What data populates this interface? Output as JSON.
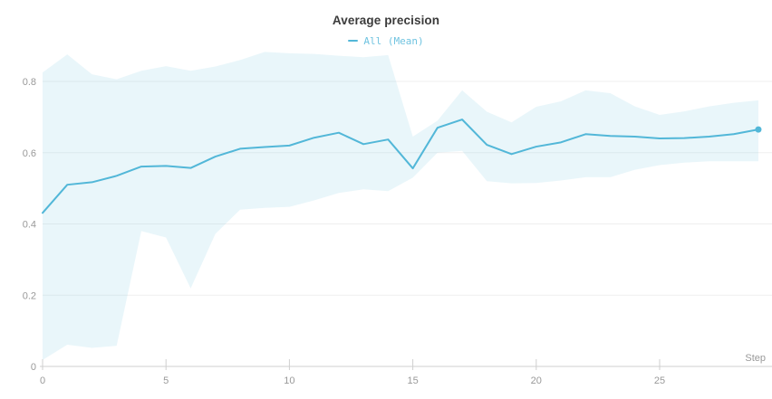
{
  "header": {
    "title": "Average precision"
  },
  "legend": {
    "items": [
      {
        "label": "All (Mean)",
        "color": "#6fc3e0",
        "swatch_color": "#52b7d8"
      }
    ]
  },
  "axes": {
    "x_axis_label": "Step",
    "x_ticks": [
      0,
      5,
      10,
      15,
      20,
      25
    ],
    "y_ticks": [
      0,
      0.2,
      0.4,
      0.6,
      0.8
    ],
    "y_tick_labels": [
      "0",
      "0.2",
      "0.4",
      "0.6",
      "0.8"
    ]
  },
  "colors": {
    "line": "#52b7d8",
    "band_fill": "rgba(84,184,216,0.13)",
    "gridline": "#efefef",
    "axis_line": "#cfcfcf",
    "tick_text": "#999999",
    "title_text": "#3b3b3b",
    "background": "#ffffff"
  },
  "chart_data": {
    "type": "line",
    "title": "Average precision",
    "xlabel": "Step",
    "ylabel": "",
    "xlim": [
      0,
      29.5
    ],
    "ylim": [
      0,
      0.89
    ],
    "grid": "horizontal",
    "legend_position": "top-center",
    "x": [
      0,
      1,
      2,
      3,
      4,
      5,
      6,
      7,
      8,
      9,
      10,
      11,
      12,
      13,
      14,
      15,
      16,
      17,
      18,
      19,
      20,
      21,
      22,
      23,
      24,
      25,
      26,
      27,
      28,
      29
    ],
    "series": [
      {
        "name": "All (Mean)",
        "mean": [
          0.431,
          0.51,
          0.517,
          0.535,
          0.561,
          0.563,
          0.557,
          0.589,
          0.611,
          0.616,
          0.62,
          0.642,
          0.656,
          0.624,
          0.637,
          0.556,
          0.67,
          0.693,
          0.622,
          0.596,
          0.617,
          0.629,
          0.652,
          0.647,
          0.645,
          0.64,
          0.641,
          0.645,
          0.652,
          0.665
        ],
        "upper": [
          0.825,
          0.876,
          0.82,
          0.806,
          0.83,
          0.843,
          0.83,
          0.842,
          0.86,
          0.883,
          0.879,
          0.877,
          0.872,
          0.868,
          0.874,
          0.645,
          0.69,
          0.775,
          0.715,
          0.685,
          0.729,
          0.744,
          0.775,
          0.767,
          0.73,
          0.706,
          0.716,
          0.73,
          0.74,
          0.747
        ],
        "lower": [
          0.018,
          0.061,
          0.052,
          0.058,
          0.38,
          0.362,
          0.219,
          0.372,
          0.44,
          0.445,
          0.448,
          0.466,
          0.487,
          0.497,
          0.492,
          0.53,
          0.6,
          0.605,
          0.52,
          0.514,
          0.515,
          0.522,
          0.531,
          0.531,
          0.552,
          0.565,
          0.572,
          0.576,
          0.576,
          0.576
        ],
        "band_meaning": "min/max range",
        "last_point_marker": true
      }
    ]
  }
}
